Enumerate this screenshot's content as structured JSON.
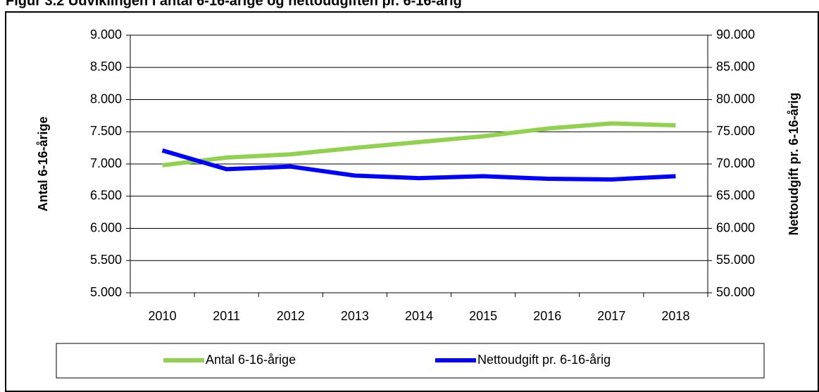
{
  "chart_data": {
    "type": "line",
    "title": "Figur 3.2 Udviklingen i antal 6-16-årige og nettoudgiften pr. 6-16-årig",
    "y_label": "Antal 6-16-årige",
    "y2_label": "Nettoudgift pr. 6-16-årig",
    "categories": [
      "2010",
      "2011",
      "2012",
      "2013",
      "2014",
      "2015",
      "2016",
      "2017",
      "2018"
    ],
    "series": [
      {
        "name": "Antal 6-16-årige",
        "color": "#92d050",
        "values": [
          6980,
          7100,
          7150,
          7250,
          7340,
          7430,
          7550,
          7630,
          7600
        ]
      },
      {
        "name": "Nettoudgift pr. 6-16-årig",
        "color": "#0000ff",
        "axis": "y2",
        "values": [
          72100,
          69200,
          69600,
          68200,
          67800,
          68100,
          67700,
          67600,
          68100
        ]
      }
    ],
    "ylim": [
      5000,
      9000
    ],
    "yticks": [
      {
        "value": 5000,
        "label": "5.000"
      },
      {
        "value": 5500,
        "label": "5.500"
      },
      {
        "value": 6000,
        "label": "6.000"
      },
      {
        "value": 6500,
        "label": "6.500"
      },
      {
        "value": 7000,
        "label": "7.000"
      },
      {
        "value": 7500,
        "label": "7.500"
      },
      {
        "value": 8000,
        "label": "8.000"
      },
      {
        "value": 8500,
        "label": "8.500"
      },
      {
        "value": 9000,
        "label": "9.000"
      }
    ],
    "y2lim": [
      50000,
      90000
    ],
    "y2ticks": [
      {
        "value": 50000,
        "label": "50.000"
      },
      {
        "value": 55000,
        "label": "55.000"
      },
      {
        "value": 60000,
        "label": "60.000"
      },
      {
        "value": 65000,
        "label": "65.000"
      },
      {
        "value": 70000,
        "label": "70.000"
      },
      {
        "value": 75000,
        "label": "75.000"
      },
      {
        "value": 80000,
        "label": "80.000"
      },
      {
        "value": 85000,
        "label": "85.000"
      },
      {
        "value": 90000,
        "label": "90.000"
      }
    ],
    "grid": true,
    "legend": "bottom"
  }
}
